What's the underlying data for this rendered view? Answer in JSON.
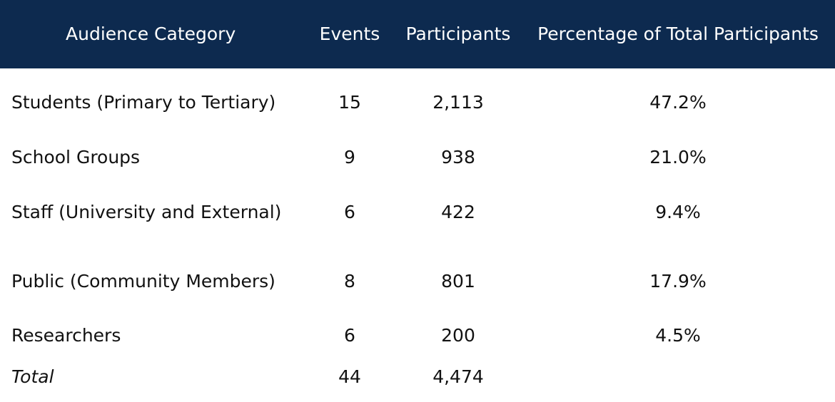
{
  "table": {
    "headers": [
      "Audience Category",
      "Events",
      "Participants",
      "Percentage of Total Participants"
    ],
    "rows": [
      [
        "Students (Primary to Tertiary)",
        "15",
        "2,113",
        "47.2%"
      ],
      [
        "School Groups",
        "9",
        "938",
        "21.0%"
      ],
      [
        "Staff (University and External)",
        "6",
        "422",
        "9.4%"
      ],
      [
        "Public (Community Members)",
        "8",
        "801",
        "17.9%"
      ],
      [
        "Researchers",
        "6",
        "200",
        "4.5%"
      ]
    ],
    "total": {
      "label": "Total",
      "events": "44",
      "participants": "4,474"
    },
    "colors": {
      "header_bg": "#0d2a4f",
      "header_text": "#ffffff"
    }
  }
}
